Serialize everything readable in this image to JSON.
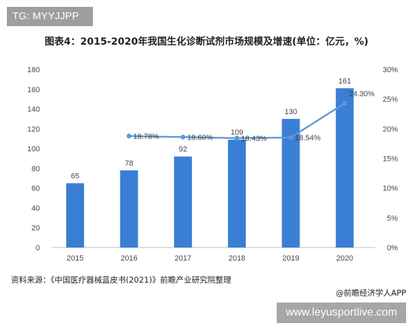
{
  "watermark_tag": "TG: MYYJJPP",
  "title": "图表4：2015-2020年我国生化诊断试剂市场规模及增速(单位：亿元，%)",
  "source": "资料来源：《中国医疗器械蓝皮书(2021)》前瞻产业研究院整理",
  "credit": "@前瞻经济学人APP",
  "site": "www.leyusportlive.com",
  "chart_data": {
    "type": "bar+line",
    "categories": [
      "2015",
      "2016",
      "2017",
      "2018",
      "2019",
      "2020"
    ],
    "bar_values": [
      65,
      78,
      92,
      109,
      130,
      161
    ],
    "line_values": [
      null,
      18.78,
      18.6,
      18.43,
      18.54,
      24.3
    ],
    "line_labels": [
      "",
      "18.78%",
      "18.60%",
      "18.43%",
      "18.54%",
      "24.30%"
    ],
    "ylim": [
      0,
      180
    ],
    "yticks": [
      "0",
      "20",
      "40",
      "60",
      "80",
      "100",
      "120",
      "140",
      "160",
      "180"
    ],
    "y2lim": [
      0,
      30
    ],
    "y2ticks": [
      "0%",
      "5%",
      "10%",
      "15%",
      "20%",
      "25%",
      "30%"
    ],
    "bar_color": "#3a7fd5",
    "line_color": "#5b9bd5",
    "grid": false
  }
}
